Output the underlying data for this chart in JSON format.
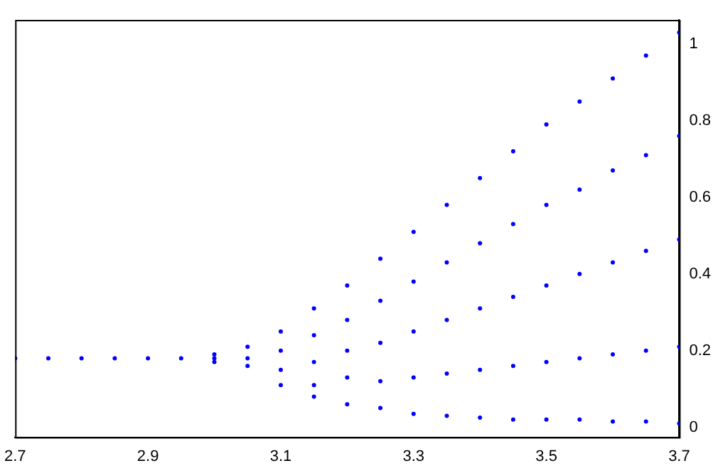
{
  "chart_data": {
    "type": "scatter",
    "marker": "circle",
    "grid": false,
    "legend": false,
    "xlim": [
      2.7,
      3.7
    ],
    "xticks": [
      2.7,
      2.9,
      3.1,
      3.3,
      3.5,
      3.7
    ],
    "ylim": [
      -0.026,
      1.063
    ],
    "yticks": [
      0,
      0.2,
      0.4,
      0.6,
      0.8,
      1
    ],
    "series": [
      {
        "color": "#0000ff",
        "x": [
          2.7,
          2.75,
          2.8,
          2.85,
          2.9,
          2.95,
          3.0,
          3.0,
          3.0,
          3.05,
          3.05,
          3.05,
          3.1,
          3.1,
          3.1,
          3.1,
          3.15,
          3.15,
          3.15,
          3.15,
          3.15,
          3.2,
          3.2,
          3.2,
          3.2,
          3.2,
          3.25,
          3.25,
          3.25,
          3.25,
          3.25,
          3.3,
          3.3,
          3.3,
          3.3,
          3.3,
          3.35,
          3.35,
          3.35,
          3.35,
          3.35,
          3.4,
          3.4,
          3.4,
          3.4,
          3.4,
          3.45,
          3.45,
          3.45,
          3.45,
          3.45,
          3.5,
          3.5,
          3.5,
          3.5,
          3.5,
          3.55,
          3.55,
          3.55,
          3.55,
          3.55,
          3.6,
          3.6,
          3.6,
          3.6,
          3.6,
          3.65,
          3.65,
          3.65,
          3.65,
          3.65,
          3.7,
          3.7,
          3.7,
          3.7,
          3.7
        ],
        "values": [
          0.18,
          0.18,
          0.18,
          0.18,
          0.18,
          0.18,
          0.18,
          0.19,
          0.17,
          0.21,
          0.18,
          0.16,
          0.25,
          0.2,
          0.15,
          0.11,
          0.31,
          0.24,
          0.17,
          0.11,
          0.08,
          0.37,
          0.28,
          0.2,
          0.13,
          0.06,
          0.44,
          0.33,
          0.22,
          0.12,
          0.05,
          0.51,
          0.38,
          0.25,
          0.13,
          0.035,
          0.58,
          0.43,
          0.28,
          0.14,
          0.03,
          0.65,
          0.48,
          0.31,
          0.15,
          0.025,
          0.72,
          0.53,
          0.34,
          0.16,
          0.02,
          0.79,
          0.58,
          0.37,
          0.17,
          0.02,
          0.85,
          0.62,
          0.4,
          0.18,
          0.02,
          0.91,
          0.67,
          0.43,
          0.19,
          0.015,
          0.97,
          0.71,
          0.46,
          0.2,
          0.015,
          1.03,
          0.76,
          0.49,
          0.21,
          0.01
        ]
      }
    ]
  }
}
